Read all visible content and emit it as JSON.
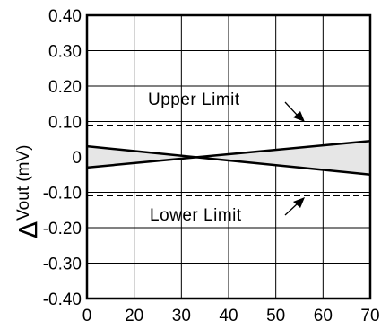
{
  "chart_data": {
    "type": "line",
    "ylabel_symbol": "Δ",
    "ylabel_text": "Vout  (mV)",
    "x_ticks": [
      "0",
      "20",
      "30",
      "40",
      "50",
      "60",
      "70"
    ],
    "y_ticks": [
      "0.40",
      "0.30",
      "0.20",
      "0.10",
      "0",
      "-0.10",
      "-0.20",
      "-0.30",
      "-0.40"
    ],
    "ylim": [
      -0.4,
      0.4
    ],
    "grid": true,
    "series": [
      {
        "values": [
          0.03,
          -0.05
        ]
      },
      {
        "values": [
          -0.03,
          0.045
        ]
      }
    ],
    "limits": [
      {
        "label": "Upper Limit",
        "values": [
          0.1,
          0.09
        ]
      },
      {
        "label": "Lower Limit",
        "values": [
          -0.1,
          -0.11
        ]
      }
    ],
    "fill_color": "#e6e6e6",
    "line_color": "#000000"
  }
}
